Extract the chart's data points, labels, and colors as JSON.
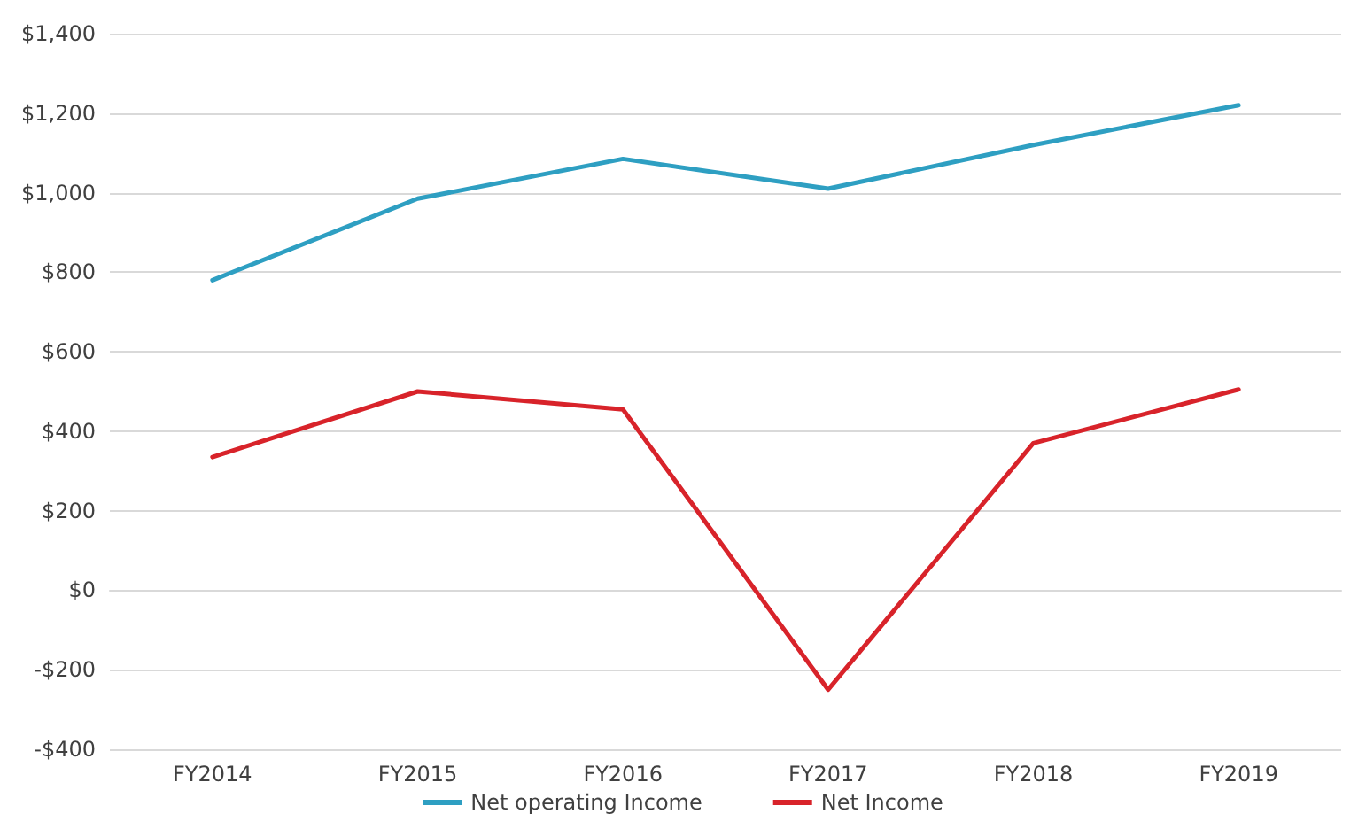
{
  "chart_data": {
    "type": "line",
    "categories": [
      "FY2014",
      "FY2015",
      "FY2016",
      "FY2017",
      "FY2018",
      "FY2019"
    ],
    "series": [
      {
        "name": "Net operating Income",
        "color": "#2e9fc2",
        "values": [
          780,
          985,
          1085,
          1010,
          1120,
          1220
        ]
      },
      {
        "name": "Net Income",
        "color": "#d8232a",
        "values": [
          335,
          500,
          455,
          -250,
          370,
          505
        ]
      }
    ],
    "ylim": [
      -400,
      1400
    ],
    "yticks": [
      {
        "value": -400,
        "label": "-$400"
      },
      {
        "value": -200,
        "label": "-$200"
      },
      {
        "value": 0,
        "label": "$0"
      },
      {
        "value": 200,
        "label": "$200"
      },
      {
        "value": 400,
        "label": "$400"
      },
      {
        "value": 600,
        "label": "$600"
      },
      {
        "value": 800,
        "label": "$800"
      },
      {
        "value": 1000,
        "label": "$1,000"
      },
      {
        "value": 1200,
        "label": "$1,200"
      },
      {
        "value": 1400,
        "label": "$1,400"
      }
    ],
    "grid": "y",
    "legend": "bottom",
    "marker": "none",
    "line_style": "solid"
  }
}
